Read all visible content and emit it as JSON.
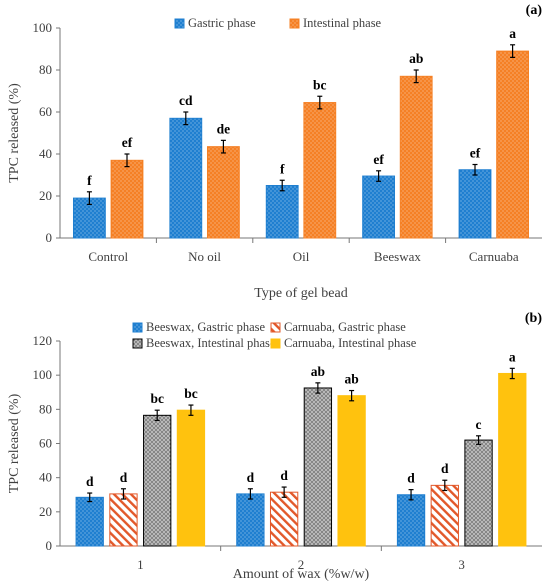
{
  "chart_data": [
    {
      "type": "bar",
      "panel_label": "(a)",
      "xlabel": "Type of gel bead",
      "ylabel": "TPC released (%)",
      "ylim": [
        0,
        100
      ],
      "yticks": [
        0,
        20,
        40,
        60,
        80,
        100
      ],
      "grid": false,
      "legend": "top-center",
      "categories": [
        "Control",
        "No oil",
        "Oil",
        "Beeswax",
        "Carnuaba"
      ],
      "series": [
        {
          "name": "Gastric phase",
          "color": "#1f7fd0",
          "pattern": "dots",
          "values": [
            19,
            57,
            25,
            29.5,
            32.5
          ],
          "errors": [
            3,
            3,
            2.5,
            2.5,
            2.5
          ],
          "labels": [
            "f",
            "cd",
            "f",
            "ef",
            "ef"
          ]
        },
        {
          "name": "Intestinal phase",
          "color": "#f58025",
          "pattern": "dots",
          "values": [
            37,
            43.5,
            64.5,
            77,
            89
          ],
          "errors": [
            3,
            3,
            3,
            3,
            3
          ],
          "labels": [
            "ef",
            "de",
            "bc",
            "ab",
            "a"
          ]
        }
      ]
    },
    {
      "type": "bar",
      "panel_label": "(b)",
      "xlabel": "Amount of wax (%w/w)",
      "ylabel": "TPC released (%)",
      "ylim": [
        0,
        120
      ],
      "yticks": [
        0,
        20,
        40,
        60,
        80,
        100,
        120
      ],
      "grid": false,
      "legend": "top-center",
      "categories": [
        "1",
        "2",
        "3"
      ],
      "series": [
        {
          "name": "Beeswax, Gastric phase",
          "color": "#1f7fd0",
          "pattern": "dots",
          "values": [
            28.5,
            30.5,
            30
          ],
          "errors": [
            2.5,
            3,
            3
          ],
          "labels": [
            "d",
            "d",
            "d"
          ]
        },
        {
          "name": "Carnuaba, Gastric phase",
          "color": "#e2582a",
          "pattern": "hatch",
          "values": [
            30.5,
            31.5,
            35.5
          ],
          "errors": [
            3,
            3,
            3
          ],
          "labels": [
            "d",
            "d",
            "d"
          ]
        },
        {
          "name": "Beeswax, Intestinal phase",
          "color": "#8a8a8a",
          "pattern": "crosshatch",
          "values": [
            76.5,
            92.5,
            62
          ],
          "errors": [
            3,
            3,
            2.5
          ],
          "labels": [
            "bc",
            "ab",
            "c"
          ]
        },
        {
          "name": "Carnuaba, Intestinal phase",
          "color": "#ffc20e",
          "pattern": "solid",
          "values": [
            79.5,
            88,
            101
          ],
          "errors": [
            3,
            3,
            3
          ],
          "labels": [
            "bc",
            "ab",
            "a"
          ]
        }
      ]
    }
  ]
}
